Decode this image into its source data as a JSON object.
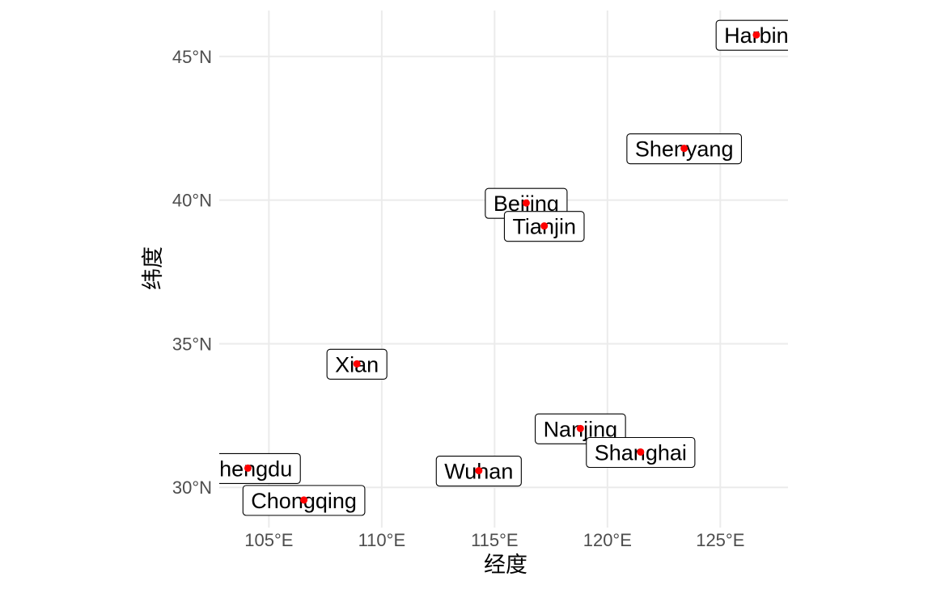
{
  "map": {
    "x_axis_title": "经度",
    "y_axis_title": "纬度",
    "x_ticks": [
      {
        "value": 105,
        "label": "105°E"
      },
      {
        "value": 110,
        "label": "110°E"
      },
      {
        "value": 115,
        "label": "115°E"
      },
      {
        "value": 120,
        "label": "120°E"
      },
      {
        "value": 125,
        "label": "125°E"
      }
    ],
    "y_ticks": [
      {
        "value": 30,
        "label": "30°N"
      },
      {
        "value": 35,
        "label": "35°N"
      },
      {
        "value": 40,
        "label": "40°N"
      },
      {
        "value": 45,
        "label": "45°N"
      }
    ],
    "lon_range": [
      102.8,
      128.0
    ],
    "lat_range": [
      28.6,
      46.6
    ],
    "point_color": "#ff0000",
    "cities": [
      {
        "name": "Harbin",
        "lon": 126.6,
        "lat": 45.75
      },
      {
        "name": "Shenyang",
        "lon": 123.4,
        "lat": 41.8
      },
      {
        "name": "Beijing",
        "lon": 116.4,
        "lat": 39.9
      },
      {
        "name": "Tianjin",
        "lon": 117.2,
        "lat": 39.1
      },
      {
        "name": "Xian",
        "lon": 108.9,
        "lat": 34.3
      },
      {
        "name": "Nanjing",
        "lon": 118.8,
        "lat": 32.05
      },
      {
        "name": "Shanghai",
        "lon": 121.47,
        "lat": 31.23
      },
      {
        "name": "Chengdu",
        "lon": 104.07,
        "lat": 30.67
      },
      {
        "name": "Wuhan",
        "lon": 114.3,
        "lat": 30.58
      },
      {
        "name": "Chongqing",
        "lon": 106.55,
        "lat": 29.56
      }
    ]
  }
}
